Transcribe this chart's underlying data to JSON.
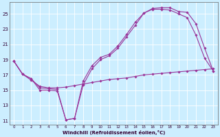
{
  "xlabel": "Windchill (Refroidissement éolien,°C)",
  "xlim": [
    -0.5,
    23.5
  ],
  "ylim": [
    10.5,
    26.5
  ],
  "xticks": [
    0,
    1,
    2,
    3,
    4,
    5,
    6,
    7,
    8,
    9,
    10,
    11,
    12,
    13,
    14,
    15,
    16,
    17,
    18,
    19,
    20,
    21,
    22,
    23
  ],
  "yticks": [
    11,
    13,
    15,
    17,
    19,
    21,
    23,
    25
  ],
  "bg_color": "#cceeff",
  "grid_color": "#aaddcc",
  "line_color": "#993399",
  "line1_x": [
    0,
    1,
    2,
    3,
    4,
    5,
    6,
    7,
    8,
    9,
    10,
    11,
    12,
    13,
    14,
    15,
    16,
    17,
    18,
    19,
    20,
    21,
    22,
    23
  ],
  "line1_y": [
    18.8,
    17.1,
    16.5,
    15.0,
    15.0,
    14.9,
    11.1,
    11.3,
    16.2,
    18.2,
    19.3,
    19.7,
    20.8,
    22.3,
    23.9,
    25.1,
    25.7,
    25.8,
    25.8,
    25.3,
    25.2,
    23.7,
    20.5,
    17.5
  ],
  "line2_x": [
    0,
    1,
    2,
    3,
    4,
    5,
    6,
    7,
    8,
    9,
    10,
    11,
    12,
    13,
    14,
    15,
    16,
    17,
    18,
    19,
    20,
    21,
    22,
    23
  ],
  "line2_y": [
    18.8,
    17.1,
    16.5,
    15.3,
    15.2,
    15.1,
    11.1,
    11.3,
    15.7,
    17.8,
    19.0,
    19.5,
    20.5,
    22.0,
    23.5,
    25.1,
    25.6,
    25.6,
    25.5,
    25.0,
    24.5,
    22.2,
    19.2,
    17.5
  ],
  "line3_x": [
    0,
    1,
    2,
    3,
    4,
    5,
    6,
    7,
    8,
    9,
    10,
    11,
    12,
    13,
    14,
    15,
    16,
    17,
    18,
    19,
    20,
    21,
    22,
    23
  ],
  "line3_y": [
    18.8,
    17.1,
    16.3,
    15.5,
    15.3,
    15.3,
    15.4,
    15.6,
    15.8,
    16.0,
    16.2,
    16.4,
    16.5,
    16.6,
    16.8,
    17.0,
    17.1,
    17.2,
    17.3,
    17.4,
    17.5,
    17.6,
    17.7,
    17.8
  ]
}
